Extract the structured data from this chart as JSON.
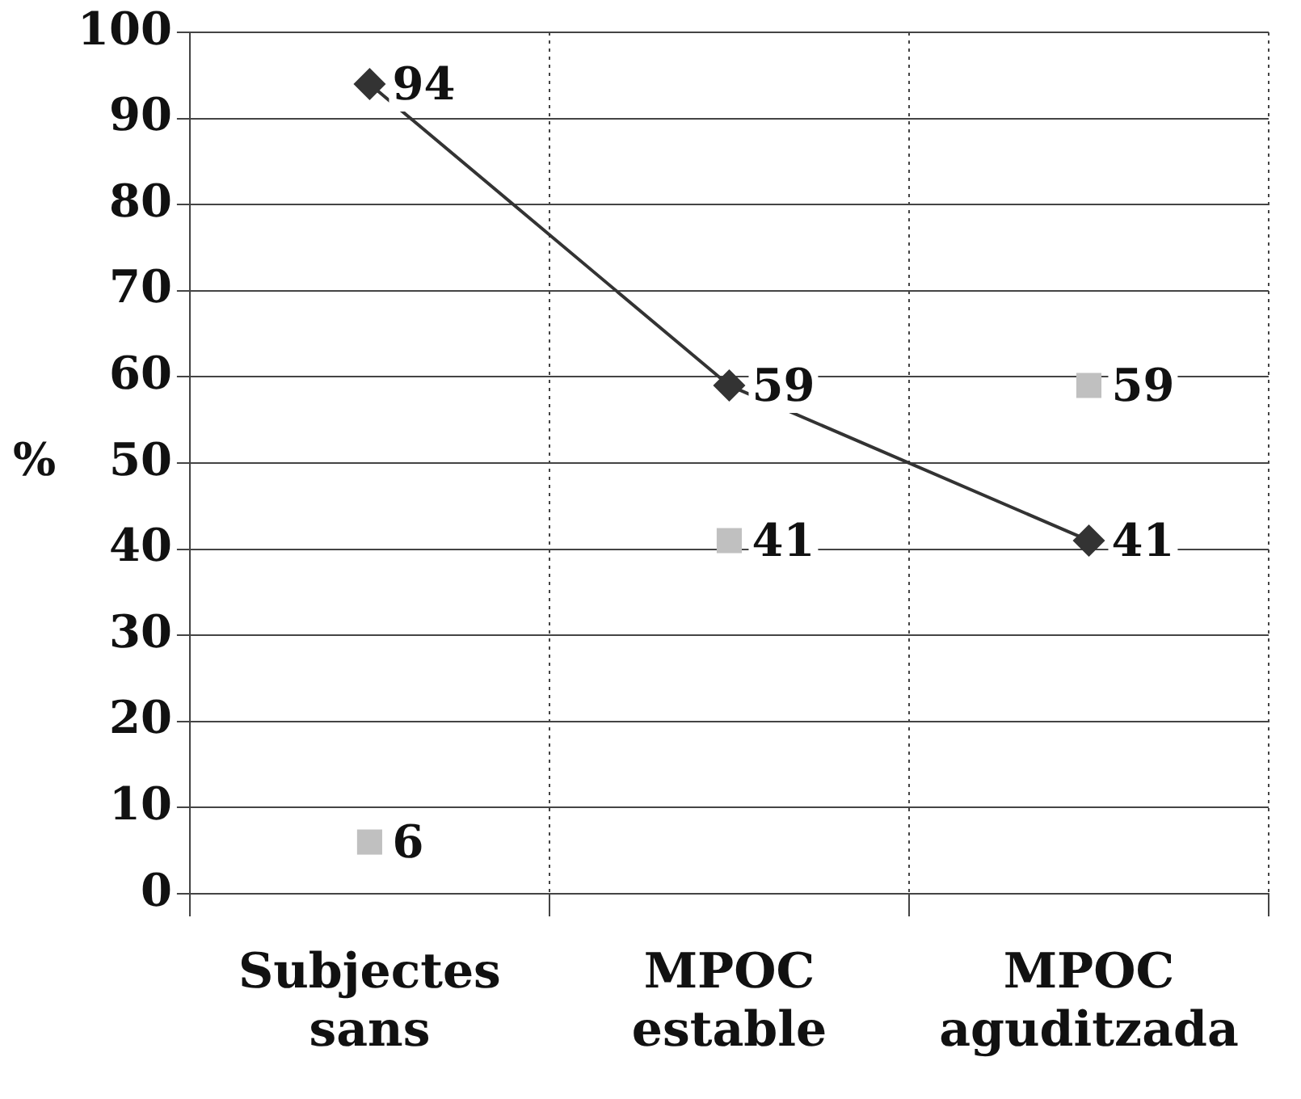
{
  "chart_data": {
    "type": "line",
    "ylabel": "%",
    "categories": [
      "Subjectes sans",
      "MPOC estable",
      "MPOC aguditzada"
    ],
    "series": [
      {
        "type": "line",
        "color": "#333333",
        "marker": "diamond",
        "values": [
          94,
          59,
          41
        ]
      },
      {
        "type": "scatter",
        "color": "#c0c0c0",
        "marker": "square",
        "values": [
          6,
          41,
          59
        ]
      }
    ],
    "ylim": [
      0,
      100
    ],
    "yticks": [
      0,
      10,
      20,
      30,
      40,
      50,
      60,
      70,
      80,
      90,
      100
    ],
    "grid": true,
    "legend": false,
    "data_labels": true
  }
}
